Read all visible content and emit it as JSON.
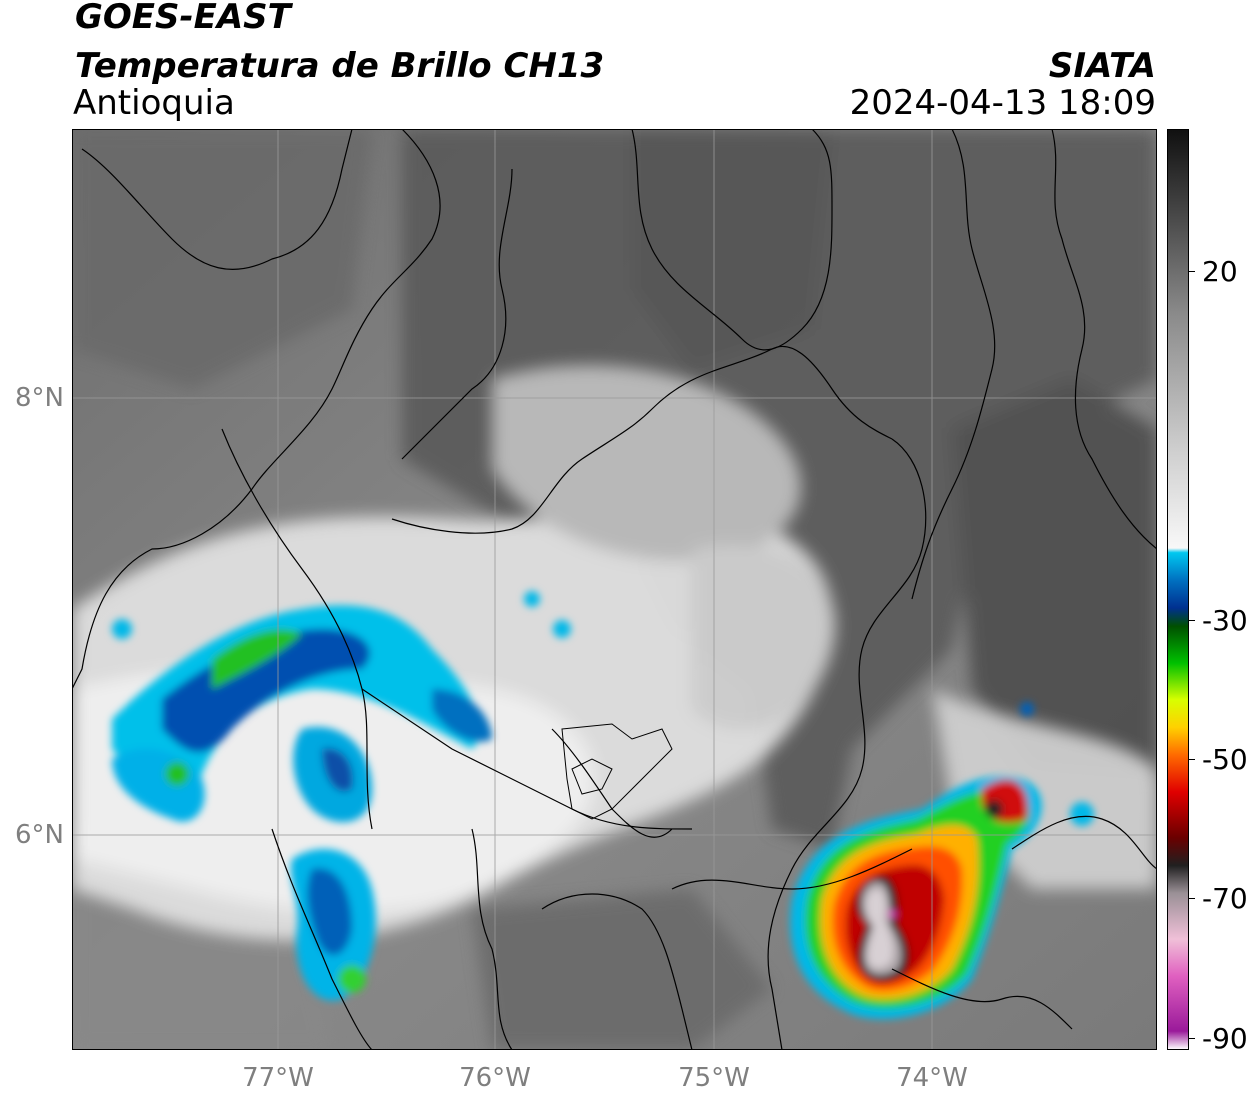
{
  "header": {
    "satellite": "GOES-EAST",
    "product": "Temperatura de Brillo CH13",
    "region": "Antioquia",
    "source": "SIATA",
    "datetime": "2024-04-13 18:09"
  },
  "axes": {
    "lat_labels": [
      "8°N",
      "6°N"
    ],
    "lon_labels": [
      "77°W",
      "76°W",
      "75°W",
      "74°W"
    ]
  },
  "colorbar": {
    "tick_labels": [
      "20",
      "-30",
      "-50",
      "-70",
      "-90"
    ],
    "stops": [
      "#ffffff",
      "#a020a0",
      "#e060c0",
      "#f0b8d8",
      "#a89aa0",
      "#2a2a2a",
      "#6a0000",
      "#e00000",
      "#ff6000",
      "#ffd000",
      "#d8ff00",
      "#00c000",
      "#004000",
      "#0030a0",
      "#0090d0",
      "#00d8ff",
      "#ffffff",
      "#c8c8c8",
      "#808080",
      "#404040",
      "#101010"
    ]
  },
  "colors": {
    "cloud_cold": "#00b8e8",
    "cloud_deep": "#003c9c",
    "convective_green": "#20d020",
    "convective_red": "#e01010",
    "overshoot_pink": "#e040c0"
  }
}
